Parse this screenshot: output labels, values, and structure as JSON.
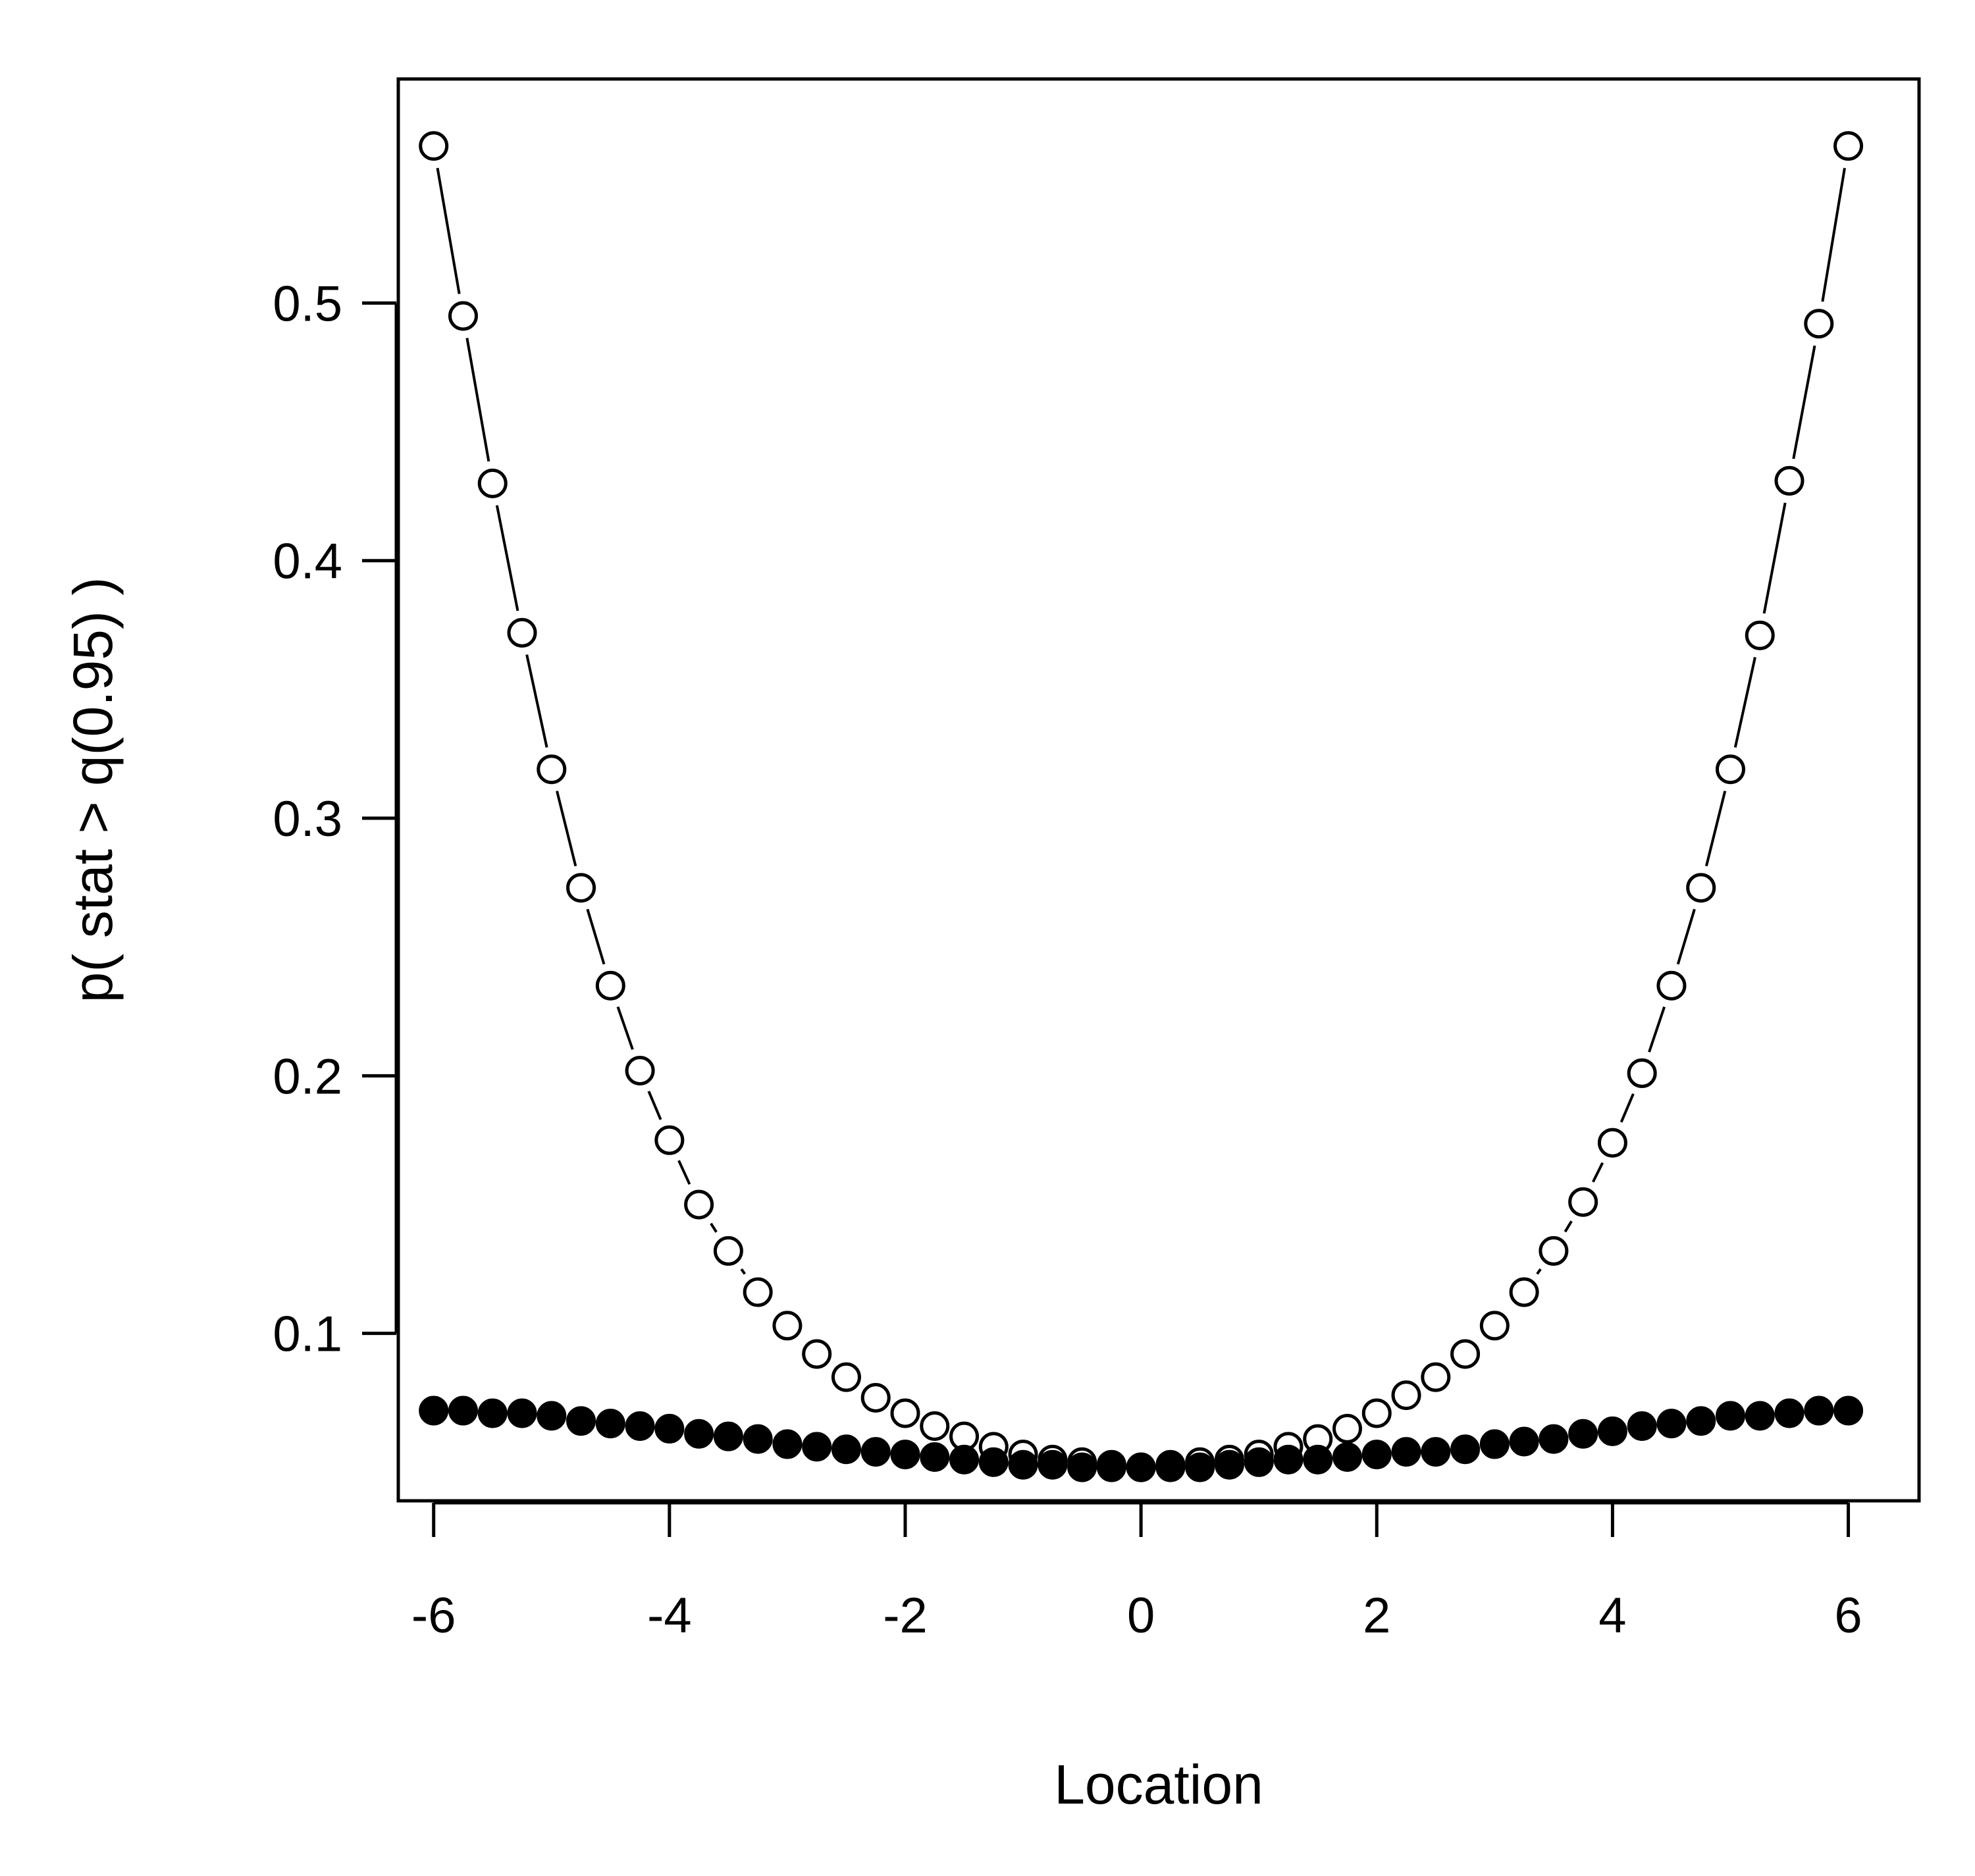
{
  "chart_data": {
    "type": "scatter",
    "title": "",
    "xlabel": "Location",
    "ylabel": "p( stat > q(0.95) )",
    "xlim": [
      -6.3,
      6.6
    ],
    "ylim": [
      0.035,
      0.587
    ],
    "xticks": [
      -6,
      -4,
      -2,
      0,
      2,
      4,
      6
    ],
    "xtick_labels": [
      "-6",
      "-4",
      "-2",
      "0",
      "2",
      "4",
      "6"
    ],
    "yticks": [
      0.1,
      0.2,
      0.3,
      0.4,
      0.5
    ],
    "ytick_labels": [
      "0.1",
      "0.2",
      "0.3",
      "0.4",
      "0.5"
    ],
    "grid": false,
    "legend": "none",
    "x": [
      -6,
      -5.75,
      -5.5,
      -5.25,
      -5,
      -4.75,
      -4.5,
      -4.25,
      -4,
      -3.75,
      -3.5,
      -3.25,
      -3,
      -2.75,
      -2.5,
      -2.25,
      -2,
      -1.75,
      -1.5,
      -1.25,
      -1,
      -0.75,
      -0.5,
      -0.25,
      0,
      0.25,
      0.5,
      0.75,
      1,
      1.25,
      1.5,
      1.75,
      2,
      2.25,
      2.5,
      2.75,
      3,
      3.25,
      3.5,
      3.75,
      4,
      4.25,
      4.5,
      4.75,
      5,
      5.25,
      5.5,
      5.75,
      6
    ],
    "series": [
      {
        "marker": "open-circle",
        "line": "dashed",
        "values": [
          0.561,
          0.495,
          0.43,
          0.372,
          0.319,
          0.273,
          0.235,
          0.202,
          0.175,
          0.15,
          0.132,
          0.116,
          0.103,
          0.092,
          0.083,
          0.075,
          0.069,
          0.064,
          0.06,
          0.056,
          0.053,
          0.051,
          0.05,
          0.049,
          0.048,
          0.049,
          0.05,
          0.051,
          0.053,
          0.056,
          0.059,
          0.063,
          0.069,
          0.076,
          0.083,
          0.092,
          0.103,
          0.116,
          0.132,
          0.151,
          0.174,
          0.201,
          0.235,
          0.273,
          0.319,
          0.371,
          0.431,
          0.492,
          0.561
        ]
      },
      {
        "marker": "filled-circle",
        "line": "none",
        "values": [
          0.07,
          0.07,
          0.069,
          0.069,
          0.068,
          0.066,
          0.065,
          0.064,
          0.063,
          0.061,
          0.06,
          0.059,
          0.057,
          0.056,
          0.055,
          0.054,
          0.053,
          0.052,
          0.051,
          0.05,
          0.049,
          0.049,
          0.048,
          0.048,
          0.048,
          0.048,
          0.048,
          0.049,
          0.05,
          0.051,
          0.051,
          0.052,
          0.053,
          0.054,
          0.054,
          0.055,
          0.057,
          0.058,
          0.059,
          0.061,
          0.062,
          0.064,
          0.065,
          0.066,
          0.068,
          0.068,
          0.069,
          0.07,
          0.07
        ]
      }
    ]
  }
}
